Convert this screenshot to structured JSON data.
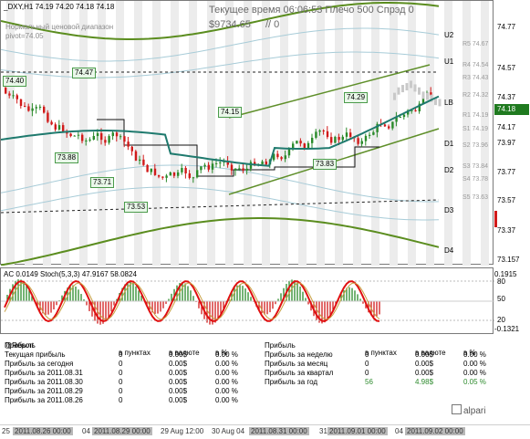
{
  "header": {
    "symbol": "_DXY,H1",
    "ohlc": "74.19 74.20 74.18 74.18",
    "line1": "Нормальный ценовой диапазон",
    "line2": "pivot=74.05",
    "server_time": "Текущее время 06:06:53 Плечо 500 Спрэд 0",
    "balance": "$9734.65",
    "extra": "// 0"
  },
  "price_axis": {
    "labels": [
      "74.77",
      "74.57",
      "74.37",
      "74.17",
      "73.97",
      "73.77",
      "73.57",
      "73.37",
      "73.157"
    ],
    "current_price": "74.18"
  },
  "levels": [
    {
      "name": "U2"
    },
    {
      "name": "U1"
    },
    {
      "name": "LB"
    },
    {
      "name": "D1"
    },
    {
      "name": "D2"
    },
    {
      "name": "D3"
    },
    {
      "name": "D4"
    }
  ],
  "gauge_labels": [
    "R5 74.67",
    "R4 74.54",
    "R3 74.43",
    "R2 74.32",
    "R1 74.19",
    "S1 74.19",
    "S2 73.96",
    "S3 73.84",
    "S4 73.78",
    "S5 73.63"
  ],
  "price_tags": [
    "74.40",
    "74.47",
    "73.88",
    "73.71",
    "73.53",
    "74.15",
    "74.29",
    "73.83"
  ],
  "oscillator": {
    "header": "AC 0.0149  Stoch(5,3,3) 47.9167 58.0824",
    "axis_labels": [
      "80",
      "0.1915",
      "50",
      "20",
      "-0.1321"
    ]
  },
  "report": {
    "title": "@Report",
    "left_header": {
      "c1": "в пунктах",
      "c2": "в валюте",
      "c3": "в %"
    },
    "right_header": {
      "c1": "в пунктах",
      "c2": "в валюте",
      "c3": "в %"
    },
    "left_rows": [
      {
        "label": "Прибыль",
        "points": "",
        "currency": "",
        "percent": ""
      },
      {
        "label": "Текущая прибыль",
        "points": "0",
        "currency": "0.00$",
        "percent": "0.00 %"
      },
      {
        "label": "Прибыль за сегодня",
        "points": "0",
        "currency": "0.00$",
        "percent": "0.00 %"
      },
      {
        "label": "Прибыль за 2011.08.31",
        "points": "0",
        "currency": "0.00$",
        "percent": "0.00 %"
      },
      {
        "label": "Прибыль за 2011.08.30",
        "points": "0",
        "currency": "0.00$",
        "percent": "0.00 %"
      },
      {
        "label": "Прибыль за 2011.08.29",
        "points": "0",
        "currency": "0.00$",
        "percent": "0.00 %"
      },
      {
        "label": "Прибыль за 2011.08.26",
        "points": "0",
        "currency": "0.00$",
        "percent": "0.00 %"
      }
    ],
    "right_rows": [
      {
        "label": "Прибыль",
        "points": "",
        "currency": "",
        "percent": ""
      },
      {
        "label": "Прибыль за неделю",
        "points": "0",
        "currency": "0.00$",
        "percent": "0.00 %"
      },
      {
        "label": "Прибыль за месяц",
        "points": "0",
        "currency": "0.00$",
        "percent": "0.00 %"
      },
      {
        "label": "Прибыль за квартал",
        "points": "0",
        "currency": "0.00$",
        "percent": "0.00 %"
      },
      {
        "label": "Прибыль за год",
        "points": "56",
        "currency": "4.98$",
        "percent": "0.05 %"
      }
    ],
    "logo": "alpari"
  },
  "time_axis": {
    "labels": [
      "25",
      "2011.08.26 00:00",
      "04",
      "2011.08.29 00:00",
      "29 Aug 12:00",
      "30 Aug 04",
      "2011.08.31 00:00",
      "31",
      "2011.09.01 00:00",
      "04",
      "2011.09.02 00:00"
    ]
  },
  "colors": {
    "bull": "#2a8a2a",
    "bear": "#d11a1a",
    "ma": "#1f7a6e",
    "channel": "#5f8f2a",
    "band": "#a8ccd8"
  }
}
